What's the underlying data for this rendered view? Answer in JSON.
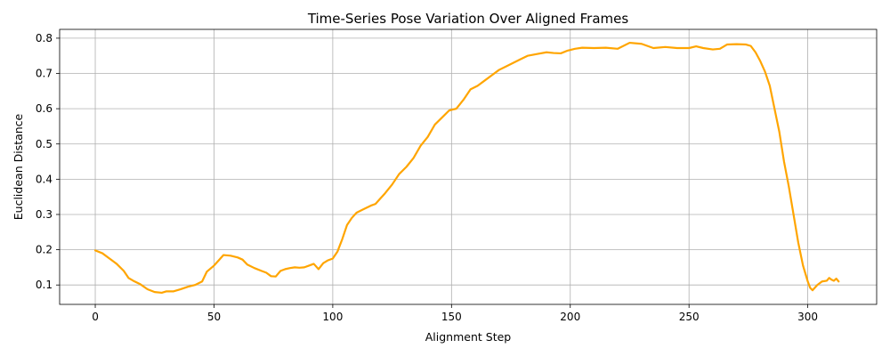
{
  "chart_data": {
    "type": "line",
    "title": "Time-Series Pose Variation Over Aligned Frames",
    "xlabel": "Alignment Step",
    "ylabel": "Euclidean Distance",
    "xlim": [
      -15,
      329
    ],
    "ylim": [
      0.045,
      0.825
    ],
    "xticks": [
      0,
      50,
      100,
      150,
      200,
      250,
      300
    ],
    "yticks": [
      0.1,
      0.2,
      0.3,
      0.4,
      0.5,
      0.6,
      0.7,
      0.8
    ],
    "xtick_labels": [
      "0",
      "50",
      "100",
      "150",
      "200",
      "250",
      "300"
    ],
    "ytick_labels": [
      "0.1",
      "0.2",
      "0.3",
      "0.4",
      "0.5",
      "0.6",
      "0.7",
      "0.8"
    ],
    "grid": true,
    "color": "#ffa500",
    "series": [
      {
        "x": [
          0,
          3,
          6,
          9,
          12,
          14,
          16,
          19,
          22,
          25,
          28,
          30,
          33,
          36,
          39,
          42,
          45,
          47,
          50,
          52,
          54,
          57,
          60,
          62,
          64,
          67,
          70,
          72,
          74,
          76,
          78,
          80,
          82,
          84,
          86,
          88,
          90,
          92,
          94,
          96,
          98,
          100,
          102,
          104,
          106,
          108,
          110,
          113,
          116,
          118,
          120,
          122,
          125,
          128,
          131,
          134,
          137,
          140,
          143,
          146,
          149,
          152,
          155,
          158,
          161,
          164,
          167,
          170,
          173,
          176,
          179,
          182,
          186,
          190,
          193,
          196,
          199,
          202,
          205,
          210,
          215,
          220,
          225,
          230,
          235,
          240,
          245,
          250,
          253,
          256,
          260,
          263,
          266,
          270,
          274,
          276,
          278,
          280,
          282,
          284,
          286,
          288,
          290,
          292,
          294,
          296,
          298,
          300,
          301,
          302,
          304,
          306,
          308,
          309,
          310,
          311,
          312,
          313
        ],
        "y": [
          0.198,
          0.19,
          0.175,
          0.16,
          0.14,
          0.12,
          0.112,
          0.102,
          0.088,
          0.08,
          0.078,
          0.082,
          0.082,
          0.088,
          0.095,
          0.1,
          0.11,
          0.138,
          0.155,
          0.17,
          0.185,
          0.183,
          0.178,
          0.172,
          0.158,
          0.148,
          0.14,
          0.135,
          0.125,
          0.124,
          0.14,
          0.145,
          0.148,
          0.15,
          0.149,
          0.15,
          0.155,
          0.16,
          0.145,
          0.162,
          0.17,
          0.175,
          0.195,
          0.23,
          0.27,
          0.29,
          0.305,
          0.315,
          0.325,
          0.33,
          0.345,
          0.36,
          0.385,
          0.415,
          0.435,
          0.46,
          0.495,
          0.52,
          0.555,
          0.575,
          0.595,
          0.6,
          0.625,
          0.655,
          0.665,
          0.68,
          0.695,
          0.71,
          0.72,
          0.73,
          0.74,
          0.75,
          0.755,
          0.76,
          0.758,
          0.757,
          0.765,
          0.77,
          0.773,
          0.772,
          0.773,
          0.77,
          0.787,
          0.784,
          0.772,
          0.775,
          0.772,
          0.772,
          0.777,
          0.772,
          0.768,
          0.77,
          0.782,
          0.783,
          0.782,
          0.778,
          0.76,
          0.735,
          0.705,
          0.665,
          0.6,
          0.535,
          0.45,
          0.38,
          0.3,
          0.22,
          0.155,
          0.11,
          0.092,
          0.085,
          0.1,
          0.11,
          0.112,
          0.12,
          0.115,
          0.112,
          0.118,
          0.11
        ]
      }
    ]
  }
}
